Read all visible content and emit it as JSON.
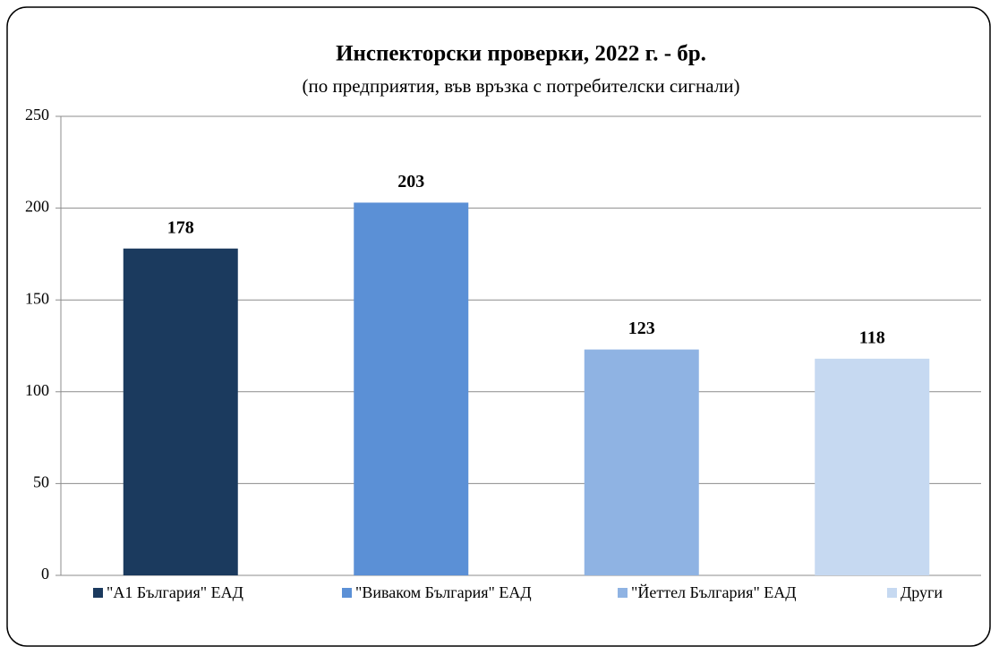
{
  "chart_data": {
    "type": "bar",
    "title": "Инспекторски проверки, 2022 г. - бр.",
    "subtitle": "(по предприятия, във връзка с потребителски сигнали)",
    "categories": [
      "\"А1 България\" ЕАД",
      "\"Виваком България\" ЕАД",
      "\"Йеттел България\" ЕАД",
      "Други"
    ],
    "values": [
      178,
      203,
      123,
      118
    ],
    "colors": [
      "#1b3a5e",
      "#5b90d6",
      "#8fb3e3",
      "#c6d9f1"
    ],
    "ylim": [
      0,
      250
    ],
    "yticks": [
      0,
      50,
      100,
      150,
      200,
      250
    ],
    "grid": true,
    "legend": "bottom"
  }
}
